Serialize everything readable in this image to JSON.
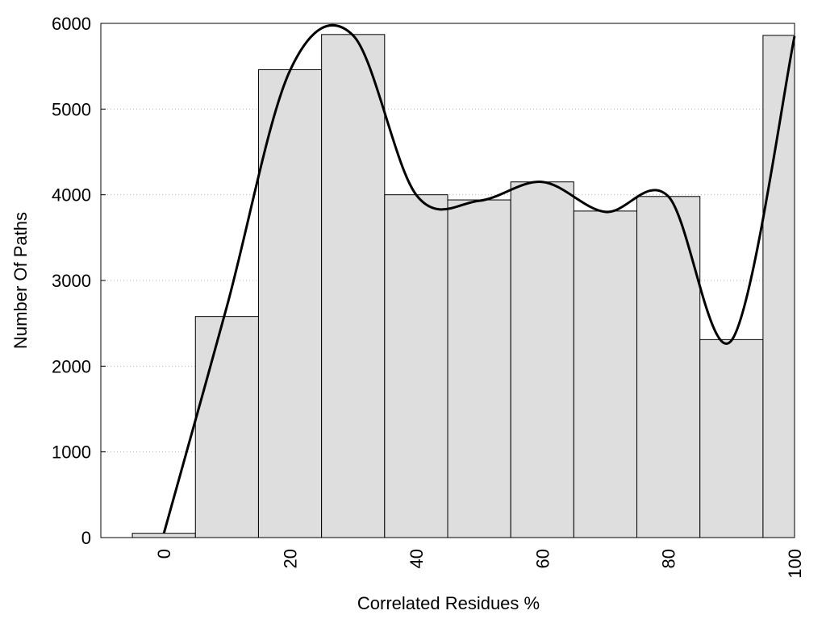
{
  "chart_data": {
    "type": "histogram",
    "xlabel": "Correlated Residues %",
    "ylabel": "Number Of Paths",
    "bins": [
      -5,
      5,
      15,
      25,
      35,
      45,
      55,
      65,
      75,
      85,
      95,
      105
    ],
    "values": [
      50,
      2580,
      5460,
      5870,
      4000,
      3940,
      4150,
      3810,
      3980,
      2310,
      5860
    ],
    "color": "#dedede",
    "line": {
      "x": [
        0,
        10,
        20,
        30,
        40,
        50,
        60,
        70,
        80,
        90,
        100
      ],
      "values": [
        50,
        2700,
        5450,
        5860,
        4000,
        3930,
        4150,
        3800,
        3980,
        2300,
        5850
      ],
      "color": "#000000"
    },
    "xlim": [
      -10,
      100
    ],
    "ylim": [
      0,
      6000
    ],
    "xticks": [
      0,
      20,
      40,
      60,
      80,
      100
    ],
    "yticks": [
      0,
      1000,
      2000,
      3000,
      4000,
      5000,
      6000
    ],
    "grid": true
  }
}
